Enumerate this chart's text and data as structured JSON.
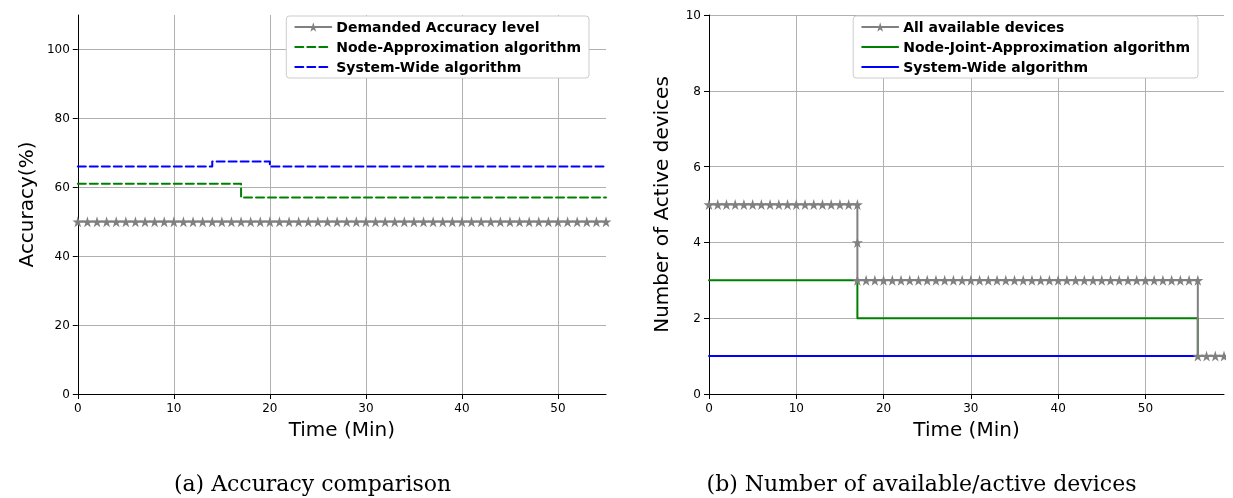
{
  "chart_data": [
    {
      "type": "line",
      "xlabel": "Time (Min)",
      "ylabel": "Accuracy(%)",
      "xlim": [
        0,
        55
      ],
      "xticks": [
        0,
        10,
        20,
        30,
        40,
        50
      ],
      "ylim": [
        0,
        110
      ],
      "yticks": [
        0,
        20,
        40,
        60,
        80,
        100
      ],
      "grid": true,
      "legend": "top right",
      "annotations": [
        "(a) Accuracy comparison"
      ],
      "series": [
        {
          "name": "Demanded Accuracy level",
          "color": "#808080",
          "marker": "star",
          "line_style": "solid",
          "x": [
            0,
            1,
            2,
            3,
            4,
            5,
            6,
            7,
            8,
            9,
            10,
            11,
            12,
            13,
            14,
            15,
            16,
            17,
            18,
            19,
            20,
            21,
            22,
            23,
            24,
            25,
            26,
            27,
            28,
            29,
            30,
            31,
            32,
            33,
            34,
            35,
            36,
            37,
            38,
            39,
            40,
            41,
            42,
            43,
            44,
            45,
            46,
            47,
            48,
            49,
            50,
            51,
            52,
            53,
            54,
            55
          ],
          "values": [
            50,
            50,
            50,
            50,
            50,
            50,
            50,
            50,
            50,
            50,
            50,
            50,
            50,
            50,
            50,
            50,
            50,
            50,
            50,
            50,
            50,
            50,
            50,
            50,
            50,
            50,
            50,
            50,
            50,
            50,
            50,
            50,
            50,
            50,
            50,
            50,
            50,
            50,
            50,
            50,
            50,
            50,
            50,
            50,
            50,
            50,
            50,
            50,
            50,
            50,
            50,
            50,
            50,
            50,
            50,
            50
          ]
        },
        {
          "name": "Node-Approximation algorithm",
          "type": "step",
          "color": "#008000",
          "marker": "none",
          "line_style": "dashed",
          "x": [
            0,
            17,
            55
          ],
          "values": [
            61,
            57,
            57
          ]
        },
        {
          "name": "System-Wide algorithm",
          "type": "step",
          "color": "#0000ff",
          "marker": "none",
          "line_style": "dashed",
          "x": [
            0,
            14,
            20,
            55
          ],
          "values": [
            66,
            67.5,
            66,
            66
          ]
        }
      ]
    },
    {
      "type": "line",
      "xlabel": "Time (Min)",
      "ylabel": "Number of Active devices",
      "xlim": [
        0,
        59
      ],
      "xticks": [
        0,
        10,
        20,
        30,
        40,
        50
      ],
      "ylim": [
        0,
        10
      ],
      "yticks": [
        0,
        2,
        4,
        6,
        8,
        10
      ],
      "grid": true,
      "legend": "top right",
      "annotations": [
        "(b) Number of available/active devices"
      ],
      "series": [
        {
          "name": "All available devices",
          "color": "#808080",
          "marker": "star",
          "line_style": "solid",
          "x": [
            0,
            1,
            2,
            3,
            4,
            5,
            6,
            7,
            8,
            9,
            10,
            11,
            12,
            13,
            14,
            15,
            16,
            17,
            17,
            17,
            18,
            19,
            20,
            21,
            22,
            23,
            24,
            25,
            26,
            27,
            28,
            29,
            30,
            31,
            32,
            33,
            34,
            35,
            36,
            37,
            38,
            39,
            40,
            41,
            42,
            43,
            44,
            45,
            46,
            47,
            48,
            49,
            50,
            51,
            52,
            53,
            54,
            55,
            56,
            56,
            57,
            58,
            59
          ],
          "values": [
            5,
            5,
            5,
            5,
            5,
            5,
            5,
            5,
            5,
            5,
            5,
            5,
            5,
            5,
            5,
            5,
            5,
            5,
            4,
            3,
            3,
            3,
            3,
            3,
            3,
            3,
            3,
            3,
            3,
            3,
            3,
            3,
            3,
            3,
            3,
            3,
            3,
            3,
            3,
            3,
            3,
            3,
            3,
            3,
            3,
            3,
            3,
            3,
            3,
            3,
            3,
            3,
            3,
            3,
            3,
            3,
            3,
            3,
            3,
            1,
            1,
            1,
            1
          ]
        },
        {
          "name": "Node-Joint-Approximation algorithm",
          "type": "step",
          "color": "#008000",
          "marker": "none",
          "line_style": "solid",
          "x": [
            0,
            17,
            56,
            59
          ],
          "values": [
            3,
            2,
            1,
            1
          ]
        },
        {
          "name": "System-Wide algorithm",
          "type": "step",
          "color": "#0000ff",
          "marker": "none",
          "line_style": "solid",
          "x": [
            0,
            59
          ],
          "values": [
            1,
            1
          ]
        }
      ]
    }
  ]
}
